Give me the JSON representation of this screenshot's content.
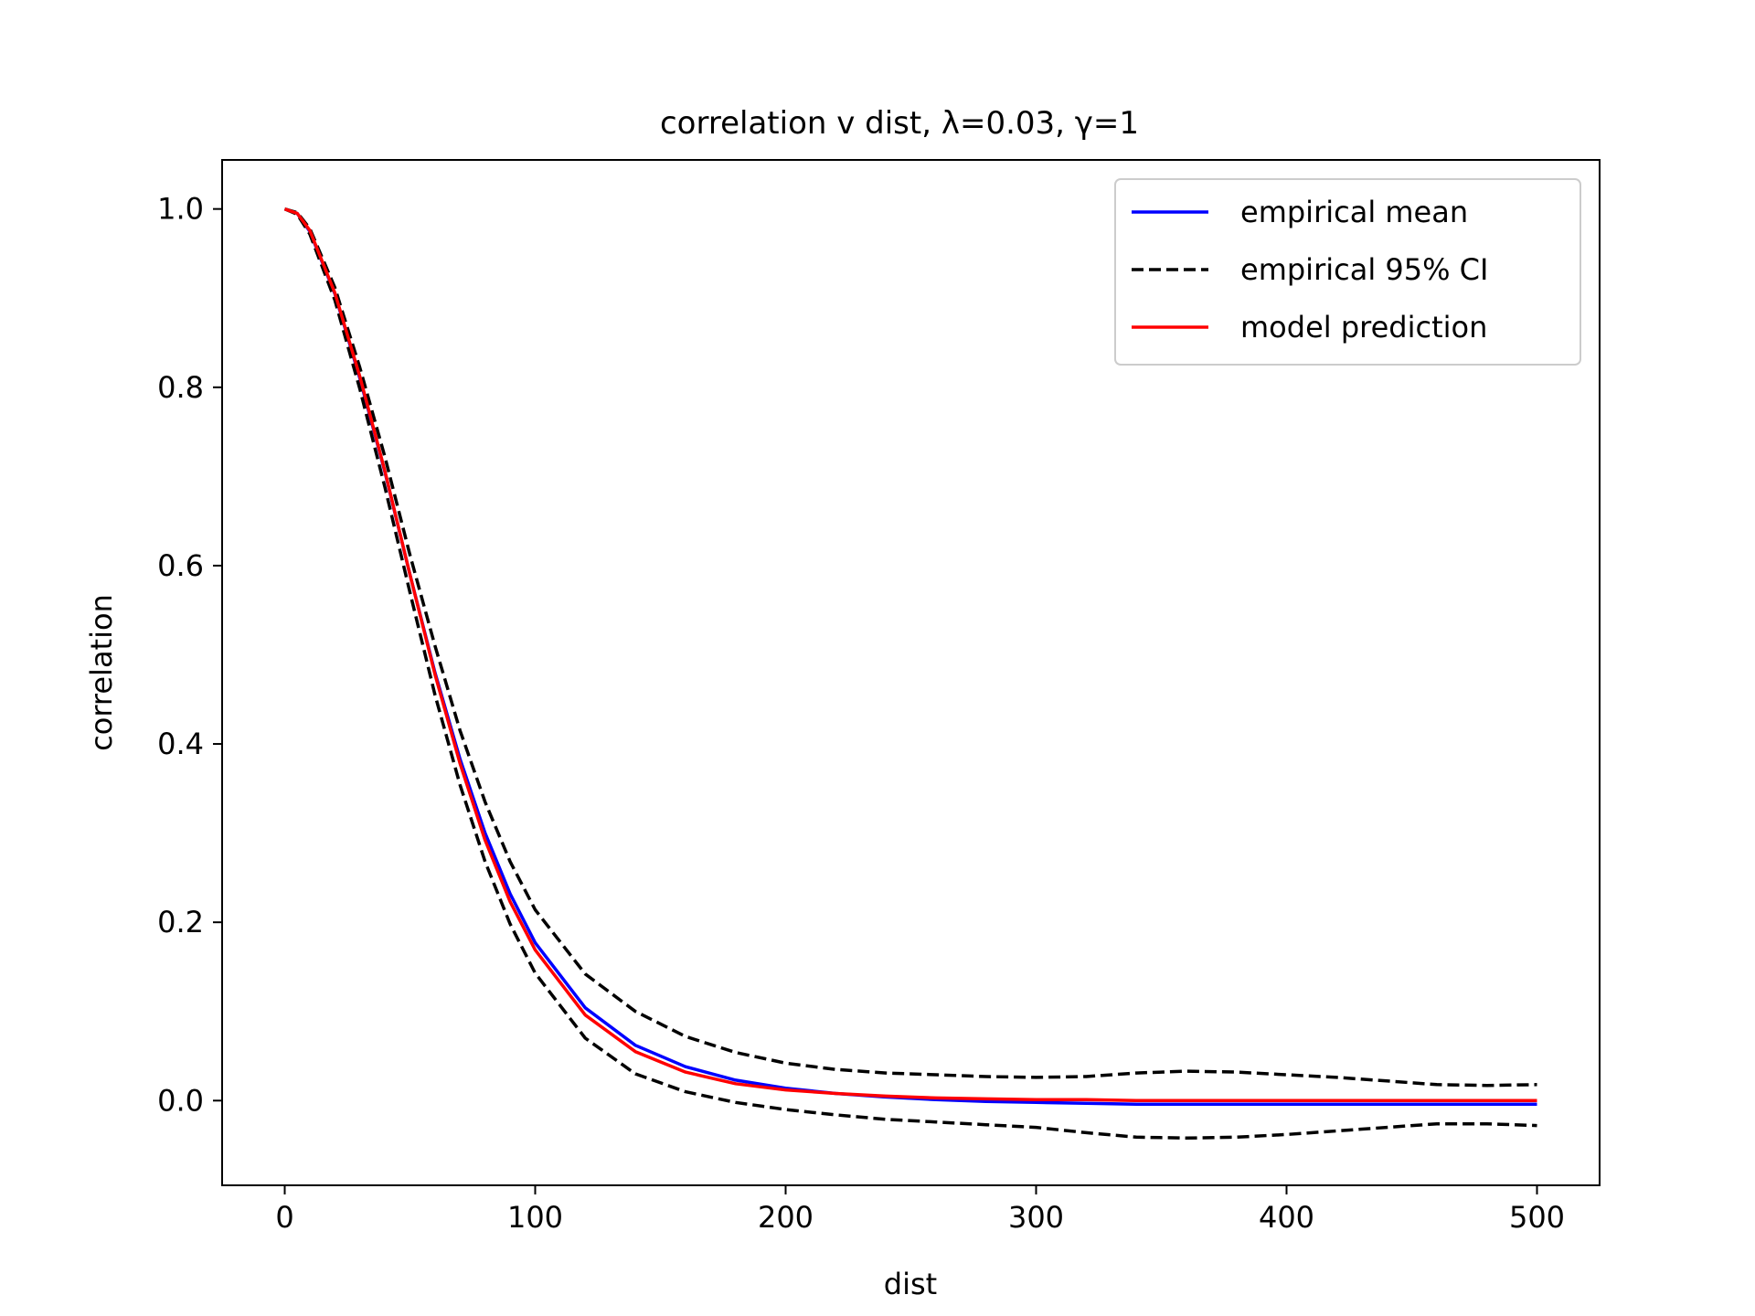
{
  "chart_data": {
    "type": "line",
    "title": "correlation v dist, λ=0.03, γ=1",
    "xlabel": "dist",
    "ylabel": "correlation",
    "xlim": [
      -25,
      525
    ],
    "ylim": [
      -0.095,
      1.055
    ],
    "xticks": [
      0,
      100,
      200,
      300,
      400,
      500
    ],
    "xtick_labels": [
      "0",
      "100",
      "200",
      "300",
      "400",
      "500"
    ],
    "yticks": [
      0.0,
      0.2,
      0.4,
      0.6,
      0.8,
      1.0
    ],
    "ytick_labels": [
      "0.0",
      "0.2",
      "0.4",
      "0.6",
      "0.8",
      "1.0"
    ],
    "grid": false,
    "legend_position": "upper-right",
    "x": [
      0,
      5,
      10,
      20,
      30,
      40,
      50,
      60,
      70,
      80,
      90,
      100,
      120,
      140,
      160,
      180,
      200,
      220,
      240,
      260,
      280,
      300,
      320,
      340,
      360,
      380,
      400,
      420,
      440,
      460,
      480,
      500
    ],
    "series": [
      {
        "name": "empirical mean",
        "color": "#0000ff",
        "style": "solid",
        "values": [
          1.0,
          0.995,
          0.975,
          0.905,
          0.81,
          0.705,
          0.59,
          0.48,
          0.383,
          0.3,
          0.232,
          0.177,
          0.104,
          0.062,
          0.038,
          0.023,
          0.014,
          0.008,
          0.004,
          0.001,
          -0.001,
          -0.002,
          -0.003,
          -0.004,
          -0.004,
          -0.004,
          -0.004,
          -0.004,
          -0.004,
          -0.004,
          -0.004,
          -0.004
        ]
      },
      {
        "name": "empirical 95% CI",
        "color": "#000000",
        "style": "dashed",
        "values": [
          1.0,
          0.996,
          0.978,
          0.912,
          0.822,
          0.722,
          0.612,
          0.51,
          0.415,
          0.335,
          0.268,
          0.214,
          0.142,
          0.1,
          0.072,
          0.054,
          0.042,
          0.035,
          0.031,
          0.029,
          0.027,
          0.026,
          0.027,
          0.031,
          0.033,
          0.032,
          0.029,
          0.026,
          0.022,
          0.018,
          0.017,
          0.018
        ]
      },
      {
        "name": "",
        "color": "#000000",
        "style": "dashed",
        "values": [
          1.0,
          0.994,
          0.972,
          0.898,
          0.798,
          0.688,
          0.57,
          0.455,
          0.354,
          0.268,
          0.198,
          0.143,
          0.07,
          0.03,
          0.01,
          -0.002,
          -0.01,
          -0.016,
          -0.021,
          -0.024,
          -0.027,
          -0.03,
          -0.036,
          -0.041,
          -0.042,
          -0.041,
          -0.038,
          -0.034,
          -0.03,
          -0.026,
          -0.026,
          -0.028
        ]
      },
      {
        "name": "model prediction",
        "color": "#ff0000",
        "style": "solid",
        "values": [
          1.0,
          0.995,
          0.976,
          0.906,
          0.812,
          0.706,
          0.59,
          0.478,
          0.378,
          0.292,
          0.223,
          0.169,
          0.096,
          0.055,
          0.032,
          0.019,
          0.012,
          0.008,
          0.005,
          0.003,
          0.002,
          0.001,
          0.001,
          0.0,
          0.0,
          0.0,
          0.0,
          0.0,
          0.0,
          0.0,
          0.0,
          0.0
        ]
      }
    ]
  }
}
